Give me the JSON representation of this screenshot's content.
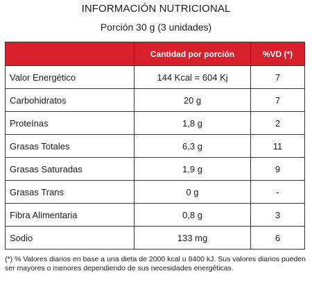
{
  "header": {
    "title": "INFORMACIÓN NUTRICIONAL",
    "serving": "Porción 30 g (3 unidades)"
  },
  "table": {
    "columns": [
      "",
      "Cantidad por porción",
      "%VD (*)"
    ],
    "rows": [
      {
        "name": "Valor Energético",
        "amount": "144 Kcal = 604 Kj",
        "vd": "7"
      },
      {
        "name": "Carbohidratos",
        "amount": "20 g",
        "vd": "7"
      },
      {
        "name": "Proteínas",
        "amount": "1,8 g",
        "vd": "2"
      },
      {
        "name": "Grasas Totales",
        "amount": "6,3 g",
        "vd": "11"
      },
      {
        "name": "Grasas Saturadas",
        "amount": "1,9 g",
        "vd": "9"
      },
      {
        "name": "Grasas Trans",
        "amount": "0 g",
        "vd": "-"
      },
      {
        "name": "Fibra Alimentaria",
        "amount": "0,8 g",
        "vd": "3"
      },
      {
        "name": "Sodio",
        "amount": "133 mg",
        "vd": "6"
      }
    ]
  },
  "footnote": "(*) % Valores diarios en base a una dieta de 2000 kcal u 8400 kJ. Sus valores diarios pueden ser mayores o menores dependiendo de sus necesidades energéticas.",
  "colors": {
    "header_bg": "#d81f2c",
    "header_text": "#ffffff",
    "border": "#333333"
  }
}
